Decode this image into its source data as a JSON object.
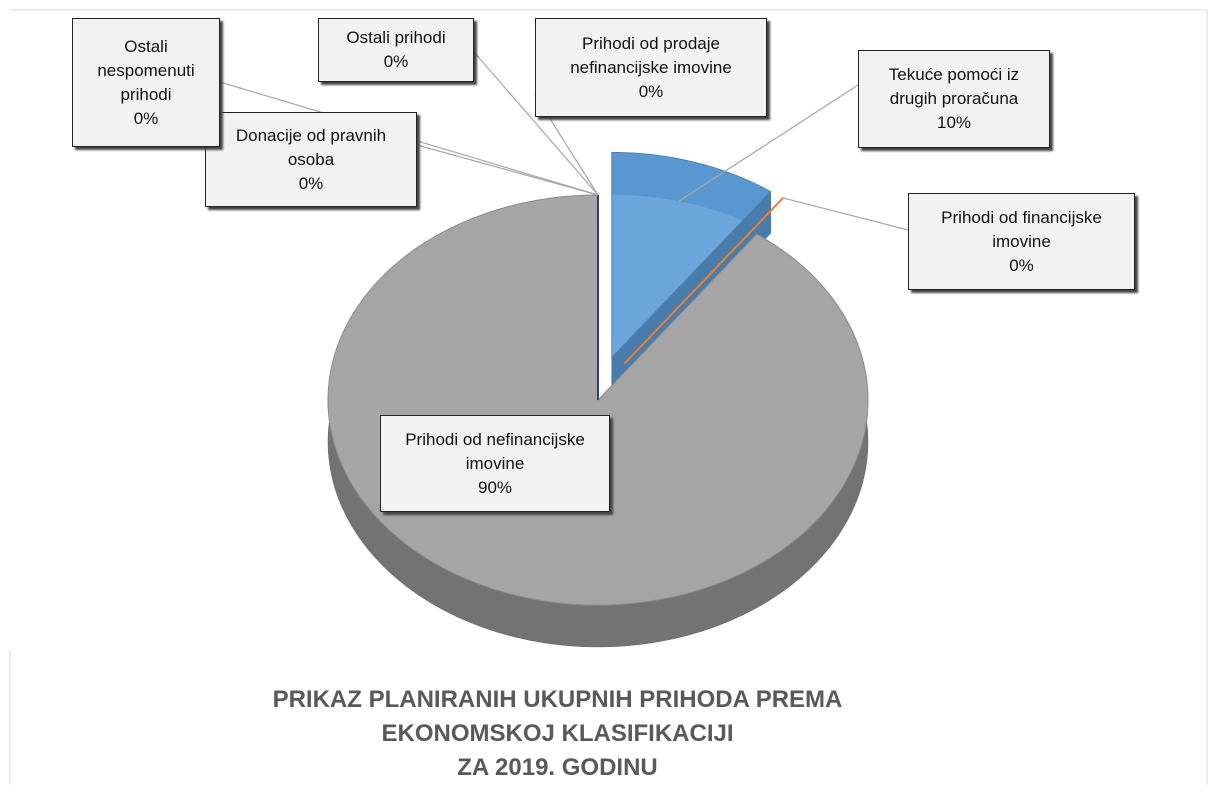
{
  "chart_data": {
    "type": "pie",
    "title": [
      "PRIKAZ PLANIRANIH UKUPNIH PRIHODA  PREMA",
      "EKONOMSKOJ KLASIFIKACIJI",
      "ZA 2019. GODINU"
    ],
    "categories": [
      "Tekuće pomoći iz drugih proračuna",
      "Prihodi od financijske imovine",
      "Prihodi od nefinancijske imovine",
      "Donacije od pravnih osoba",
      "Ostali nespomenuti prihodi",
      "Ostali prihodi",
      "Prihodi od prodaje nefinancijske imovine"
    ],
    "values": [
      10,
      0,
      90,
      0,
      0,
      0,
      0
    ],
    "value_labels": [
      "10%",
      "0%",
      "90%",
      "0%",
      "0%",
      "0%",
      "0%"
    ],
    "colors": [
      "#5b9bd5",
      "#ed7d31",
      "#a5a5a5",
      "#ffc000",
      "#4472c4",
      "#70ad47",
      "#264478"
    ]
  }
}
